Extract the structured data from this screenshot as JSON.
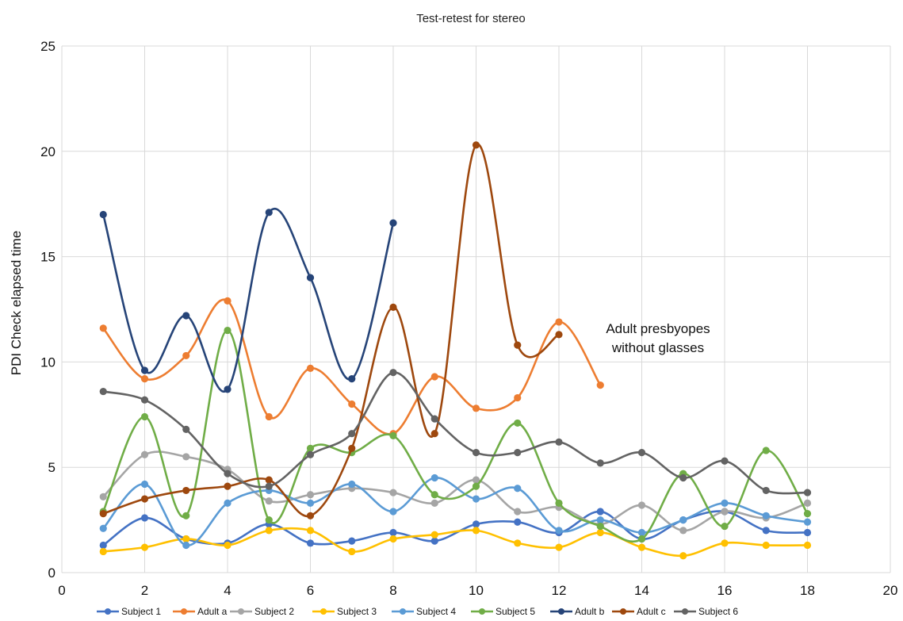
{
  "chart_data": {
    "type": "line",
    "title": "Test-retest for stereo",
    "xlabel": "",
    "ylabel": "PDI Check elapsed time",
    "xlim": [
      0,
      20
    ],
    "ylim": [
      0,
      25
    ],
    "x_ticks": [
      0,
      2,
      4,
      6,
      8,
      10,
      12,
      14,
      16,
      18,
      20
    ],
    "y_ticks": [
      0,
      5,
      10,
      15,
      20,
      25
    ],
    "grid": true,
    "smooth": true,
    "legend_position": "bottom",
    "annotation": [
      "Adult presbyopes",
      "without glasses"
    ],
    "series": [
      {
        "name": "Subject 1",
        "color": "#4472C4",
        "points": [
          [
            1,
            1.3
          ],
          [
            2,
            2.6
          ],
          [
            3,
            1.6
          ],
          [
            4,
            1.4
          ],
          [
            5,
            2.3
          ],
          [
            6,
            1.4
          ],
          [
            7,
            1.5
          ],
          [
            8,
            1.9
          ],
          [
            9,
            1.5
          ],
          [
            10,
            2.3
          ],
          [
            11,
            2.4
          ],
          [
            12,
            1.9
          ],
          [
            13,
            2.9
          ],
          [
            14,
            1.6
          ],
          [
            15,
            2.5
          ],
          [
            16,
            2.9
          ],
          [
            17,
            2.0
          ],
          [
            18,
            1.9
          ]
        ]
      },
      {
        "name": "Adult a",
        "color": "#ED7D31",
        "points": [
          [
            1,
            11.6
          ],
          [
            2,
            9.2
          ],
          [
            3,
            10.3
          ],
          [
            4,
            12.9
          ],
          [
            5,
            7.4
          ],
          [
            6,
            9.7
          ],
          [
            7,
            8.0
          ],
          [
            8,
            6.6
          ],
          [
            9,
            9.3
          ],
          [
            10,
            7.8
          ],
          [
            11,
            8.3
          ],
          [
            12,
            11.9
          ],
          [
            13,
            8.9
          ]
        ]
      },
      {
        "name": "Subject 2",
        "color": "#A5A5A5",
        "points": [
          [
            1,
            3.6
          ],
          [
            2,
            5.6
          ],
          [
            3,
            5.5
          ],
          [
            4,
            4.9
          ],
          [
            5,
            3.4
          ],
          [
            6,
            3.7
          ],
          [
            7,
            4.0
          ],
          [
            8,
            3.8
          ],
          [
            9,
            3.3
          ],
          [
            10,
            4.4
          ],
          [
            11,
            2.9
          ],
          [
            12,
            3.1
          ],
          [
            13,
            2.3
          ],
          [
            14,
            3.2
          ],
          [
            15,
            2.0
          ],
          [
            16,
            2.9
          ],
          [
            17,
            2.6
          ],
          [
            18,
            3.3
          ]
        ]
      },
      {
        "name": "Subject 3",
        "color": "#FFC000",
        "points": [
          [
            1,
            1.0
          ],
          [
            2,
            1.2
          ],
          [
            3,
            1.6
          ],
          [
            4,
            1.3
          ],
          [
            5,
            2.0
          ],
          [
            6,
            2.0
          ],
          [
            7,
            1.0
          ],
          [
            8,
            1.6
          ],
          [
            9,
            1.8
          ],
          [
            10,
            2.0
          ],
          [
            11,
            1.4
          ],
          [
            12,
            1.2
          ],
          [
            13,
            1.9
          ],
          [
            14,
            1.2
          ],
          [
            15,
            0.8
          ],
          [
            16,
            1.4
          ],
          [
            17,
            1.3
          ],
          [
            18,
            1.3
          ]
        ]
      },
      {
        "name": "Subject 4",
        "color": "#5B9BD5",
        "points": [
          [
            1,
            2.1
          ],
          [
            2,
            4.2
          ],
          [
            3,
            1.3
          ],
          [
            4,
            3.3
          ],
          [
            5,
            3.9
          ],
          [
            6,
            3.3
          ],
          [
            7,
            4.2
          ],
          [
            8,
            2.9
          ],
          [
            9,
            4.5
          ],
          [
            10,
            3.5
          ],
          [
            11,
            4.0
          ],
          [
            12,
            2.0
          ],
          [
            13,
            2.5
          ],
          [
            14,
            1.9
          ],
          [
            15,
            2.5
          ],
          [
            16,
            3.3
          ],
          [
            17,
            2.7
          ],
          [
            18,
            2.4
          ]
        ]
      },
      {
        "name": "Subject 5",
        "color": "#70AD47",
        "points": [
          [
            1,
            2.9
          ],
          [
            2,
            7.4
          ],
          [
            3,
            2.7
          ],
          [
            4,
            11.5
          ],
          [
            5,
            2.5
          ],
          [
            6,
            5.9
          ],
          [
            7,
            5.7
          ],
          [
            8,
            6.5
          ],
          [
            9,
            3.7
          ],
          [
            10,
            4.1
          ],
          [
            11,
            7.1
          ],
          [
            12,
            3.3
          ],
          [
            13,
            2.2
          ],
          [
            14,
            1.6
          ],
          [
            15,
            4.7
          ],
          [
            16,
            2.2
          ],
          [
            17,
            5.8
          ],
          [
            18,
            2.8
          ]
        ]
      },
      {
        "name": "Adult b",
        "color": "#264478",
        "points": [
          [
            1,
            17.0
          ],
          [
            2,
            9.6
          ],
          [
            3,
            12.2
          ],
          [
            4,
            8.7
          ],
          [
            5,
            17.1
          ],
          [
            6,
            14.0
          ],
          [
            7,
            9.2
          ],
          [
            8,
            16.6
          ]
        ]
      },
      {
        "name": "Adult c",
        "color": "#9E480E",
        "points": [
          [
            1,
            2.8
          ],
          [
            2,
            3.5
          ],
          [
            3,
            3.9
          ],
          [
            4,
            4.1
          ],
          [
            5,
            4.4
          ],
          [
            6,
            2.7
          ],
          [
            7,
            5.9
          ],
          [
            8,
            12.6
          ],
          [
            9,
            6.6
          ],
          [
            10,
            20.3
          ],
          [
            11,
            10.8
          ],
          [
            12,
            11.3
          ]
        ]
      },
      {
        "name": "Subject 6",
        "color": "#636363",
        "points": [
          [
            1,
            8.6
          ],
          [
            2,
            8.2
          ],
          [
            3,
            6.8
          ],
          [
            4,
            4.7
          ],
          [
            5,
            4.1
          ],
          [
            6,
            5.6
          ],
          [
            7,
            6.6
          ],
          [
            8,
            9.5
          ],
          [
            9,
            7.3
          ],
          [
            10,
            5.7
          ],
          [
            11,
            5.7
          ],
          [
            12,
            6.2
          ],
          [
            13,
            5.2
          ],
          [
            14,
            5.7
          ],
          [
            15,
            4.5
          ],
          [
            16,
            5.3
          ],
          [
            17,
            3.9
          ],
          [
            18,
            3.8
          ]
        ]
      }
    ]
  }
}
